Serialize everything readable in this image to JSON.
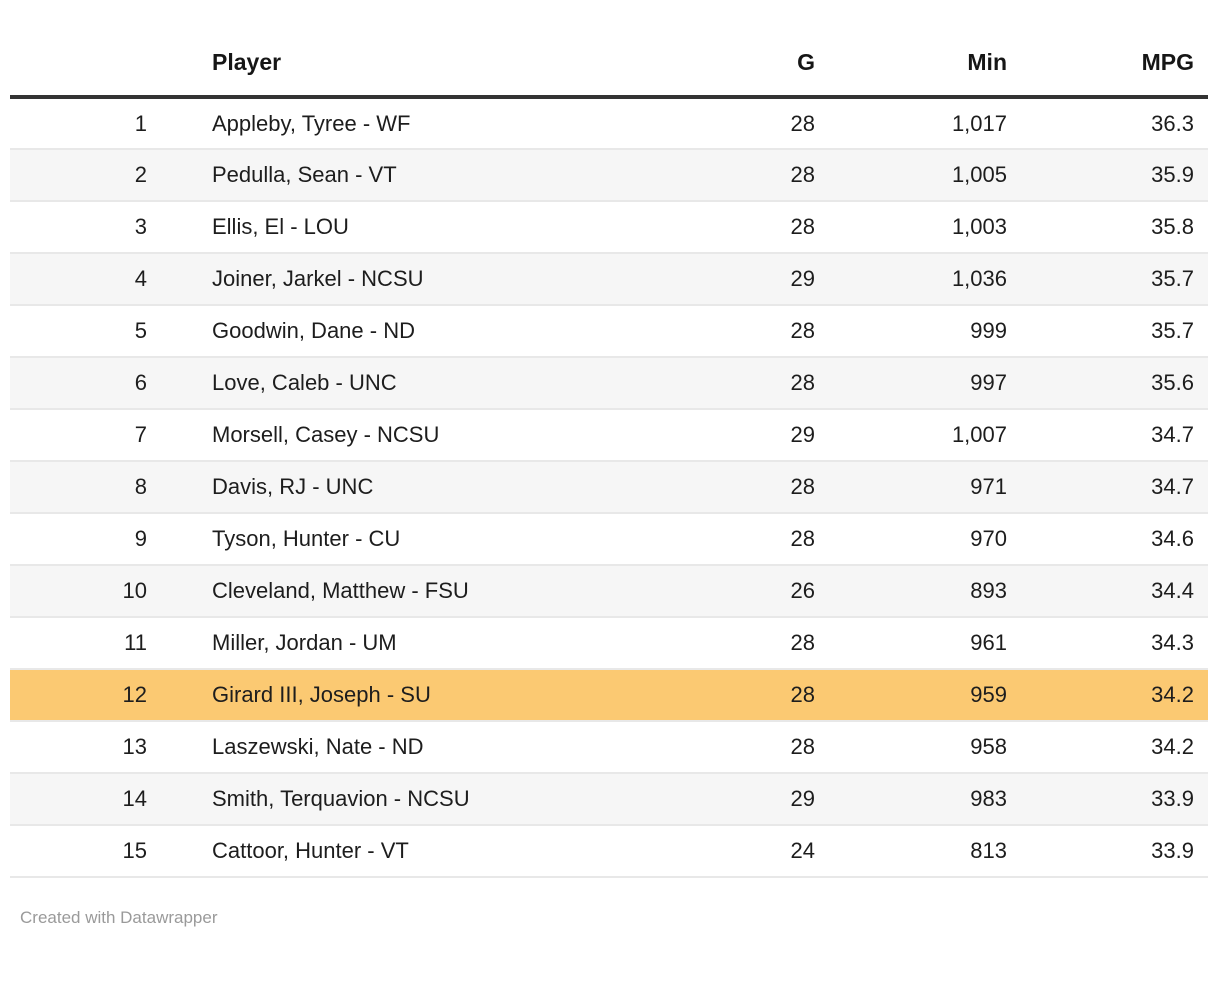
{
  "colors": {
    "highlight": "#fbc972",
    "stripe": "#f6f6f6",
    "header_rule": "#333333",
    "row_border": "#e8e8e8",
    "text": "#1d1d1d",
    "footer_text": "#9a9a9a"
  },
  "table": {
    "columns": [
      {
        "key": "rank",
        "label": ""
      },
      {
        "key": "player",
        "label": "Player"
      },
      {
        "key": "g",
        "label": "G"
      },
      {
        "key": "min",
        "label": "Min"
      },
      {
        "key": "mpg",
        "label": "MPG"
      }
    ],
    "rows": [
      {
        "rank": "1",
        "player": "Appleby, Tyree - WF",
        "g": "28",
        "min": "1,017",
        "mpg": "36.3",
        "highlight": false
      },
      {
        "rank": "2",
        "player": "Pedulla, Sean - VT",
        "g": "28",
        "min": "1,005",
        "mpg": "35.9",
        "highlight": false
      },
      {
        "rank": "3",
        "player": "Ellis, El - LOU",
        "g": "28",
        "min": "1,003",
        "mpg": "35.8",
        "highlight": false
      },
      {
        "rank": "4",
        "player": "Joiner, Jarkel - NCSU",
        "g": "29",
        "min": "1,036",
        "mpg": "35.7",
        "highlight": false
      },
      {
        "rank": "5",
        "player": "Goodwin, Dane - ND",
        "g": "28",
        "min": "999",
        "mpg": "35.7",
        "highlight": false
      },
      {
        "rank": "6",
        "player": "Love, Caleb - UNC",
        "g": "28",
        "min": "997",
        "mpg": "35.6",
        "highlight": false
      },
      {
        "rank": "7",
        "player": "Morsell, Casey - NCSU",
        "g": "29",
        "min": "1,007",
        "mpg": "34.7",
        "highlight": false
      },
      {
        "rank": "8",
        "player": "Davis, RJ - UNC",
        "g": "28",
        "min": "971",
        "mpg": "34.7",
        "highlight": false
      },
      {
        "rank": "9",
        "player": "Tyson, Hunter - CU",
        "g": "28",
        "min": "970",
        "mpg": "34.6",
        "highlight": false
      },
      {
        "rank": "10",
        "player": "Cleveland, Matthew - FSU",
        "g": "26",
        "min": "893",
        "mpg": "34.4",
        "highlight": false
      },
      {
        "rank": "11",
        "player": "Miller, Jordan - UM",
        "g": "28",
        "min": "961",
        "mpg": "34.3",
        "highlight": false
      },
      {
        "rank": "12",
        "player": "Girard III, Joseph - SU",
        "g": "28",
        "min": "959",
        "mpg": "34.2",
        "highlight": true
      },
      {
        "rank": "13",
        "player": "Laszewski, Nate - ND",
        "g": "28",
        "min": "958",
        "mpg": "34.2",
        "highlight": false
      },
      {
        "rank": "14",
        "player": "Smith, Terquavion - NCSU",
        "g": "29",
        "min": "983",
        "mpg": "33.9",
        "highlight": false
      },
      {
        "rank": "15",
        "player": "Cattoor, Hunter - VT",
        "g": "24",
        "min": "813",
        "mpg": "33.9",
        "highlight": false
      }
    ]
  },
  "footer": {
    "attribution": "Created with Datawrapper"
  },
  "chart_data": {
    "type": "table",
    "title": "",
    "columns": [
      "",
      "Player",
      "G",
      "Min",
      "MPG"
    ],
    "rows": [
      [
        1,
        "Appleby, Tyree - WF",
        28,
        1017,
        36.3
      ],
      [
        2,
        "Pedulla, Sean - VT",
        28,
        1005,
        35.9
      ],
      [
        3,
        "Ellis, El - LOU",
        28,
        1003,
        35.8
      ],
      [
        4,
        "Joiner, Jarkel - NCSU",
        29,
        1036,
        35.7
      ],
      [
        5,
        "Goodwin, Dane - ND",
        28,
        999,
        35.7
      ],
      [
        6,
        "Love, Caleb - UNC",
        28,
        997,
        35.6
      ],
      [
        7,
        "Morsell, Casey - NCSU",
        29,
        1007,
        34.7
      ],
      [
        8,
        "Davis, RJ - UNC",
        28,
        971,
        34.7
      ],
      [
        9,
        "Tyson, Hunter - CU",
        28,
        970,
        34.6
      ],
      [
        10,
        "Cleveland, Matthew - FSU",
        26,
        893,
        34.4
      ],
      [
        11,
        "Miller, Jordan - UM",
        28,
        961,
        34.3
      ],
      [
        12,
        "Girard III, Joseph - SU",
        28,
        959,
        34.2
      ],
      [
        13,
        "Laszewski, Nate - ND",
        28,
        958,
        34.2
      ],
      [
        14,
        "Smith, Terquavion - NCSU",
        29,
        983,
        33.9
      ],
      [
        15,
        "Cattoor, Hunter - VT",
        24,
        813,
        33.9
      ]
    ],
    "highlighted_row_index": 11,
    "layout": {
      "zebra_striping": true,
      "numeric_columns_right_aligned": true,
      "header_rule": true
    }
  }
}
